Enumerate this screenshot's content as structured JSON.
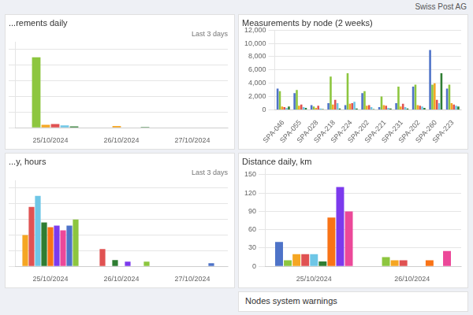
{
  "title": "Swiss Post AG",
  "chart_data": [
    {
      "type": "bar",
      "title": "...rements daily",
      "subtitle": "Last 3 days",
      "categories": [
        "25/10/2024",
        "26/10/2024",
        "27/10/2024"
      ],
      "series": [
        {
          "color": "#4e73c8",
          "values": [
            0,
            0,
            0
          ]
        },
        {
          "color": "#8dc63f",
          "values": [
            9000,
            0,
            0
          ]
        },
        {
          "color": "#f5a623",
          "values": [
            380,
            220,
            40
          ]
        },
        {
          "color": "#e05252",
          "values": [
            480,
            0,
            0
          ]
        },
        {
          "color": "#6ec6e6",
          "values": [
            290,
            0,
            0
          ]
        },
        {
          "color": "#2e7d32",
          "values": [
            170,
            90,
            0
          ]
        }
      ],
      "ylim": [
        0,
        11000
      ],
      "yticks": [
        0,
        2000,
        4000,
        6000,
        8000,
        10000
      ],
      "grid": true,
      "tick_labels": "x"
    },
    {
      "type": "bar",
      "title": "Measurements by node (2 weeks)",
      "categories": [
        "SPA-046",
        "SPA-055",
        "SPA-028",
        "SPA-218",
        "SPA-224",
        "SPA-202",
        "SPA-221",
        "SPA-231",
        "SPA-202",
        "SPA-260",
        "SPA-223"
      ],
      "series": [
        {
          "color": "#4e73c8",
          "values": [
            3200,
            2500,
            700,
            1000,
            700,
            2500,
            400,
            1000,
            3500,
            9000,
            3200
          ]
        },
        {
          "color": "#8dc63f",
          "values": [
            2800,
            3000,
            500,
            5000,
            5500,
            2800,
            2000,
            3500,
            3800,
            3800,
            3800
          ]
        },
        {
          "color": "#f5a623",
          "values": [
            500,
            600,
            300,
            800,
            900,
            600,
            700,
            500,
            700,
            4000,
            1000
          ]
        },
        {
          "color": "#e05252",
          "values": [
            400,
            800,
            600,
            1500,
            1000,
            700,
            600,
            900,
            600,
            1500,
            800
          ]
        },
        {
          "color": "#6ec6e6",
          "values": [
            300,
            400,
            200,
            1000,
            1200,
            400,
            300,
            400,
            500,
            1000,
            600
          ]
        },
        {
          "color": "#2e7d32",
          "values": [
            500,
            300,
            100,
            200,
            200,
            100,
            200,
            200,
            300,
            5500,
            500
          ]
        }
      ],
      "ylim": [
        0,
        12000
      ],
      "yticks": [
        0,
        {
          "value": 2000,
          "label": "2,000"
        },
        {
          "value": 4000,
          "label": "4,000"
        },
        {
          "value": 6000,
          "label": "6,000"
        },
        {
          "value": 8000,
          "label": "8,000"
        },
        {
          "value": 10000,
          "label": "10,000"
        },
        {
          "value": 12000,
          "label": "12,000"
        }
      ],
      "grid": true
    },
    {
      "type": "bar",
      "title": "...y, hours",
      "subtitle": "Last 3 days",
      "categories": [
        "25/10/2024",
        "26/10/2024",
        "27/10/2024"
      ],
      "series": [
        {
          "color": "#f5a623",
          "values": [
            2.0,
            0,
            0
          ]
        },
        {
          "color": "#e05252",
          "values": [
            3.8,
            1.1,
            0
          ]
        },
        {
          "color": "#6ec6e6",
          "values": [
            4.5,
            0,
            0
          ]
        },
        {
          "color": "#2e7d32",
          "values": [
            2.8,
            0.4,
            0
          ]
        },
        {
          "color": "#f97316",
          "values": [
            2.5,
            0,
            0
          ]
        },
        {
          "color": "#7c3aed",
          "values": [
            2.6,
            0.3,
            0
          ]
        },
        {
          "color": "#ec4899",
          "values": [
            2.3,
            0,
            0
          ]
        },
        {
          "color": "#4e73c8",
          "values": [
            2.6,
            0,
            0.2
          ]
        },
        {
          "color": "#8dc63f",
          "values": [
            3.0,
            0.3,
            0
          ]
        }
      ],
      "ylim": [
        0,
        5.5
      ],
      "yticks": [
        0,
        1,
        2,
        3,
        4,
        5
      ],
      "grid": true,
      "tick_labels": "x"
    },
    {
      "type": "bar",
      "title": "Distance daily, km",
      "categories": [
        "25/10/2024",
        "26/10/2024"
      ],
      "series": [
        {
          "color": "#4e73c8",
          "values": [
            40,
            0
          ]
        },
        {
          "color": "#8dc63f",
          "values": [
            10,
            15
          ]
        },
        {
          "color": "#f5a623",
          "values": [
            20,
            10
          ]
        },
        {
          "color": "#e05252",
          "values": [
            20,
            10
          ]
        },
        {
          "color": "#6ec6e6",
          "values": [
            20,
            0
          ]
        },
        {
          "color": "#2e7d32",
          "values": [
            8,
            0
          ]
        },
        {
          "color": "#f97316",
          "values": [
            80,
            10
          ]
        },
        {
          "color": "#7c3aed",
          "values": [
            130,
            0
          ]
        },
        {
          "color": "#ec4899",
          "values": [
            90,
            25
          ]
        }
      ],
      "ylim": [
        0,
        160
      ],
      "yticks": [
        0,
        30,
        60,
        90,
        120,
        150
      ],
      "grid": true
    },
    {
      "type": "text",
      "title": "Nodes system warnings"
    }
  ]
}
